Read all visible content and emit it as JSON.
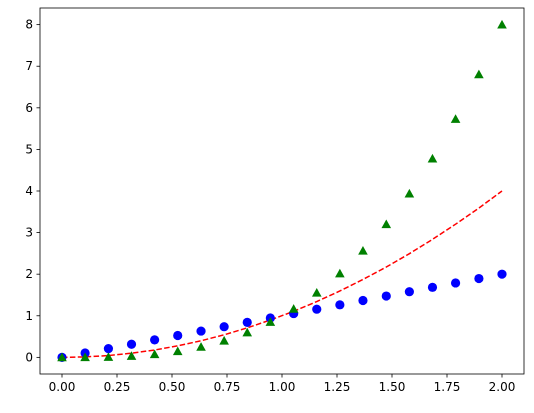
{
  "chart_data": {
    "type": "scatter",
    "title": "",
    "xlabel": "",
    "ylabel": "",
    "xlim": [
      -0.1,
      2.1
    ],
    "ylim": [
      -0.4,
      8.4
    ],
    "grid": false,
    "x_ticks": [
      "0.00",
      "0.25",
      "0.50",
      "0.75",
      "1.00",
      "1.25",
      "1.50",
      "1.75",
      "2.00"
    ],
    "y_ticks": [
      "0",
      "1",
      "2",
      "3",
      "4",
      "5",
      "6",
      "7",
      "8"
    ],
    "x": [
      0.0,
      0.105,
      0.211,
      0.316,
      0.421,
      0.526,
      0.632,
      0.737,
      0.842,
      0.947,
      1.053,
      1.158,
      1.263,
      1.368,
      1.474,
      1.579,
      1.684,
      1.789,
      1.895,
      2.0
    ],
    "series": [
      {
        "style": "line",
        "color": "#ff0000",
        "dash": "dashed",
        "values": [
          0.0,
          0.011,
          0.044,
          0.1,
          0.177,
          0.277,
          0.399,
          0.543,
          0.709,
          0.898,
          1.108,
          1.341,
          1.596,
          1.873,
          2.172,
          2.493,
          2.837,
          3.202,
          3.59,
          4.0
        ]
      },
      {
        "style": "markers",
        "marker": "circle",
        "color": "#0000ff",
        "values": [
          0.0,
          0.105,
          0.211,
          0.316,
          0.421,
          0.526,
          0.632,
          0.737,
          0.842,
          0.947,
          1.053,
          1.158,
          1.263,
          1.368,
          1.474,
          1.579,
          1.684,
          1.789,
          1.895,
          2.0
        ]
      },
      {
        "style": "markers",
        "marker": "triangle",
        "color": "#008000",
        "values": [
          0.0,
          0.001,
          0.009,
          0.032,
          0.075,
          0.146,
          0.252,
          0.4,
          0.597,
          0.85,
          1.166,
          1.552,
          2.015,
          2.562,
          3.2,
          3.936,
          4.777,
          5.73,
          6.803,
          8.0
        ]
      }
    ]
  }
}
